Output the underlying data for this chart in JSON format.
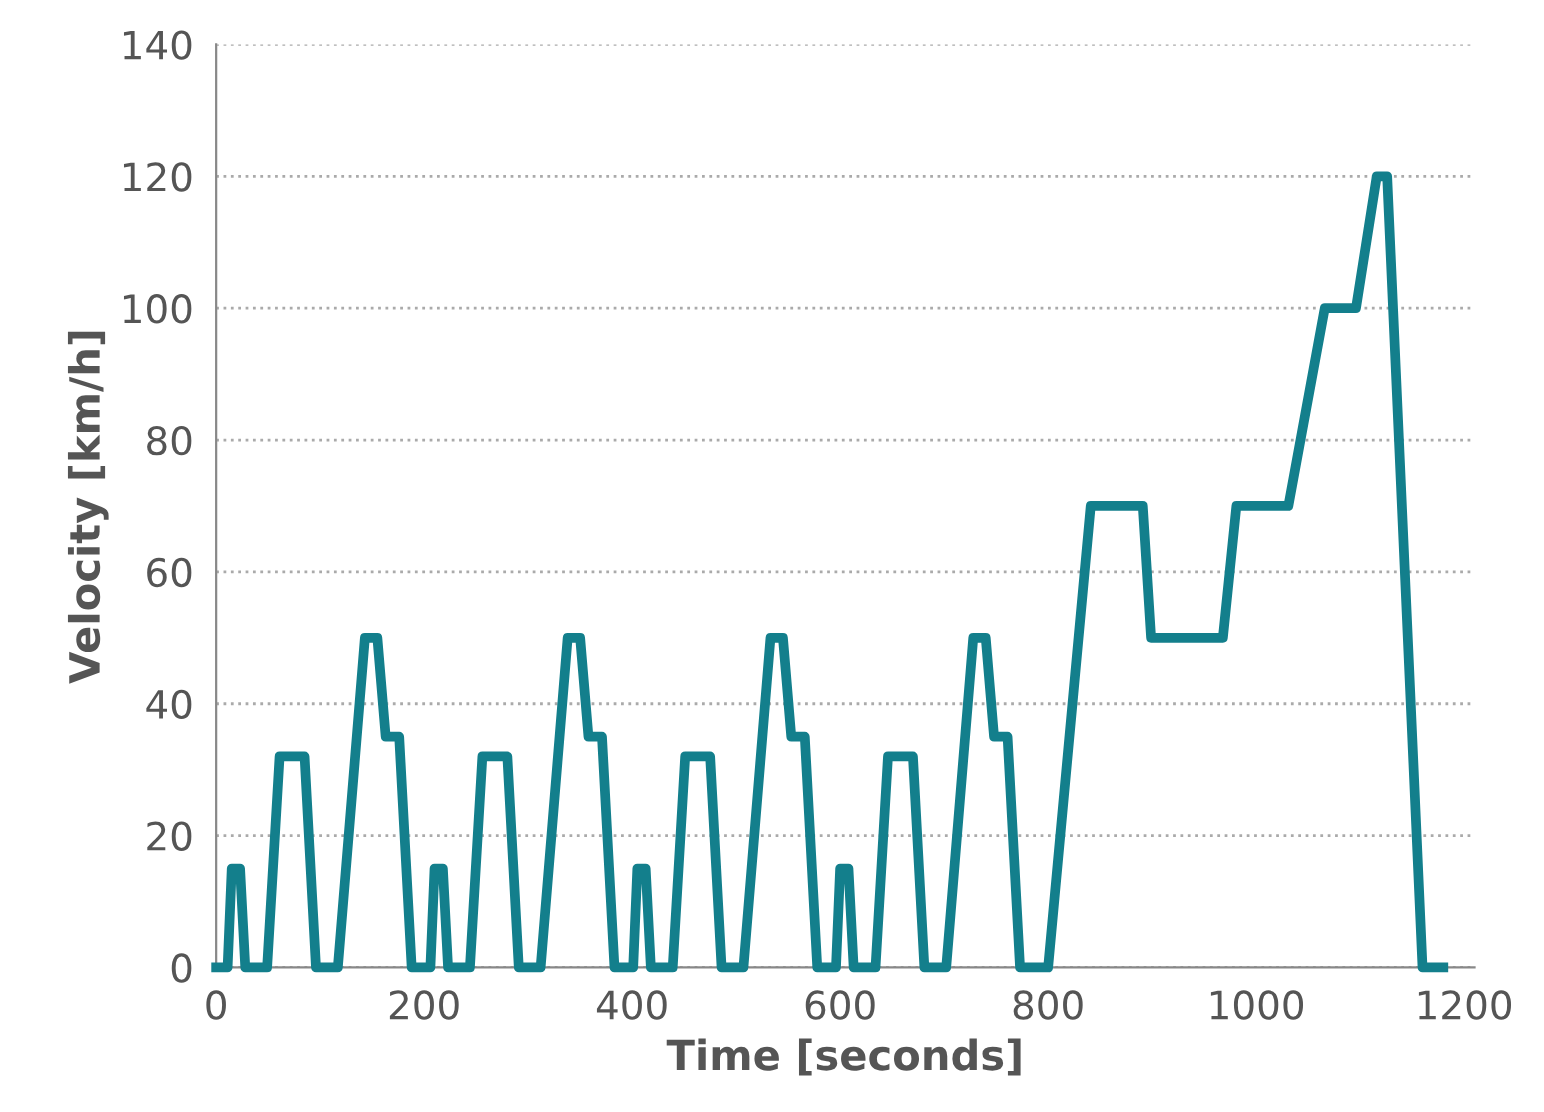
{
  "chart_data": {
    "type": "line",
    "xlabel": "Time [seconds]",
    "ylabel": "Velocity [km/h]",
    "series": [
      {
        "color": "#137f8c",
        "x": [
          0,
          11,
          15,
          23,
          28,
          49,
          61,
          85,
          96,
          117,
          143,
          155,
          163,
          176,
          188,
          195,
          206,
          210,
          218,
          223,
          244,
          256,
          280,
          291,
          312,
          338,
          350,
          358,
          371,
          383,
          390,
          401,
          405,
          413,
          418,
          439,
          451,
          475,
          486,
          507,
          533,
          545,
          553,
          566,
          578,
          585,
          596,
          600,
          608,
          613,
          634,
          646,
          670,
          681,
          702,
          728,
          740,
          748,
          761,
          773,
          780,
          800,
          841,
          891,
          899,
          968,
          981,
          1031,
          1066,
          1096,
          1116,
          1126,
          1160,
          1180
        ],
        "values": [
          0,
          0,
          15,
          15,
          0,
          0,
          32,
          32,
          0,
          0,
          50,
          50,
          35,
          35,
          0,
          0,
          0,
          15,
          15,
          0,
          0,
          32,
          32,
          0,
          0,
          50,
          50,
          35,
          35,
          0,
          0,
          0,
          15,
          15,
          0,
          0,
          32,
          32,
          0,
          0,
          50,
          50,
          35,
          35,
          0,
          0,
          0,
          15,
          15,
          0,
          0,
          32,
          32,
          0,
          0,
          50,
          50,
          35,
          35,
          0,
          0,
          0,
          70,
          70,
          50,
          50,
          70,
          70,
          100,
          100,
          120,
          120,
          0,
          0
        ]
      }
    ],
    "xlim": [
      0,
      1210
    ],
    "xticks": [
      0,
      200,
      400,
      600,
      800,
      1000,
      1200
    ],
    "ylim": [
      0,
      140
    ],
    "yticks": [
      0,
      20,
      40,
      60,
      80,
      100,
      120,
      140
    ],
    "grid": "y",
    "legend": false,
    "marker": "none",
    "line_style": "solid"
  }
}
